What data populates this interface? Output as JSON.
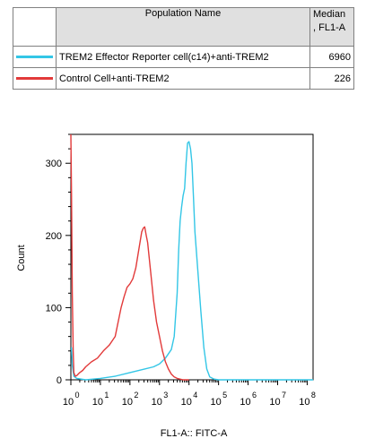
{
  "legend": {
    "header_name": "Population Name",
    "header_median": "Median\n, FL1-A",
    "rows": [
      {
        "name": "TREM2 Effector Reporter cell(c14)+anti-TREM2",
        "median": "6960",
        "color": "#33c6e6"
      },
      {
        "name": "Control Cell+anti-TREM2",
        "median": "226",
        "color": "#e23a3a"
      }
    ]
  },
  "chart_data": {
    "type": "line",
    "title": "",
    "xlabel": "FL1-A:: FITC-A",
    "ylabel": "Count",
    "x_scale": "log10",
    "xlim": [
      0,
      8.2
    ],
    "ylim": [
      0,
      340
    ],
    "x_ticks": [
      0,
      1,
      2,
      3,
      4,
      5,
      6,
      7,
      8
    ],
    "x_tick_labels": [
      "10",
      "10",
      "10",
      "10",
      "10",
      "10",
      "10",
      "10",
      "10"
    ],
    "x_tick_exponents": [
      "0",
      "1",
      "2",
      "3",
      "4",
      "5",
      "6",
      "7",
      "8"
    ],
    "y_ticks": [
      0,
      100,
      200,
      300
    ],
    "y_tick_labels": [
      "0",
      "100",
      "200",
      "300"
    ],
    "grid": false,
    "series": [
      {
        "name": "TREM2 Effector Reporter cell(c14)+anti-TREM2",
        "color": "#33c6e6",
        "x": [
          0.02,
          0.05,
          0.1,
          0.2,
          0.5,
          1.0,
          1.5,
          2.0,
          2.5,
          2.8,
          3.0,
          3.2,
          3.4,
          3.5,
          3.6,
          3.65,
          3.7,
          3.75,
          3.8,
          3.85,
          3.9,
          3.95,
          4.0,
          4.05,
          4.1,
          4.15,
          4.2,
          4.3,
          4.4,
          4.5,
          4.6,
          4.7,
          4.85,
          5.0,
          6.0,
          7.0,
          8.0,
          8.2
        ],
        "y": [
          45,
          20,
          5,
          2,
          0,
          2,
          5,
          10,
          15,
          18,
          22,
          30,
          42,
          60,
          120,
          180,
          220,
          240,
          255,
          265,
          300,
          328,
          330,
          320,
          300,
          255,
          205,
          150,
          95,
          45,
          15,
          4,
          1,
          0,
          0,
          0,
          0,
          0
        ]
      },
      {
        "name": "Control Cell+anti-TREM2",
        "color": "#e23a3a",
        "x": [
          0.0,
          0.02,
          0.05,
          0.08,
          0.1,
          0.15,
          0.2,
          0.3,
          0.4,
          0.5,
          0.7,
          0.9,
          1.1,
          1.3,
          1.5,
          1.7,
          1.8,
          1.9,
          2.0,
          2.1,
          2.2,
          2.3,
          2.4,
          2.45,
          2.5,
          2.55,
          2.6,
          2.7,
          2.8,
          2.9,
          3.0,
          3.1,
          3.2,
          3.3,
          3.4,
          3.5,
          3.6,
          3.8,
          4.0
        ],
        "y": [
          380,
          260,
          120,
          40,
          10,
          5,
          6,
          10,
          13,
          18,
          25,
          30,
          40,
          48,
          60,
          100,
          115,
          128,
          133,
          140,
          155,
          180,
          205,
          210,
          212,
          200,
          190,
          150,
          110,
          80,
          60,
          40,
          25,
          15,
          8,
          4,
          2,
          0,
          0
        ]
      }
    ]
  }
}
